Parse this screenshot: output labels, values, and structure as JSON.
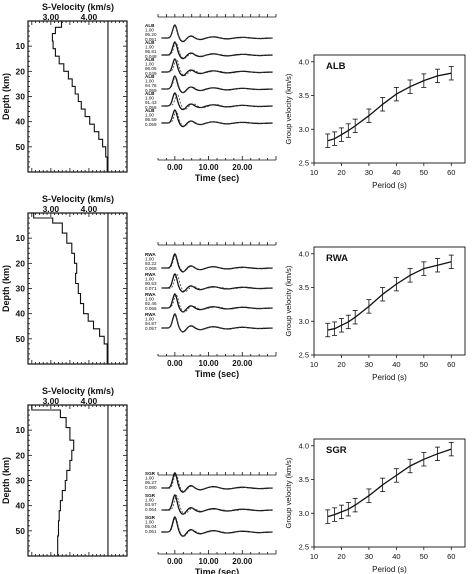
{
  "chart_data": [
    {
      "type": "line",
      "row": "ALB",
      "kind": "s-velocity-depth-profile",
      "title": "S-Velocity  (km/s)",
      "xlabel": "",
      "ylabel": "Depth (km)",
      "xlim": [
        2.4,
        5.0
      ],
      "ylim": [
        0,
        60
      ],
      "x_ticklabels": [
        "3.00",
        "4.00"
      ],
      "y_ticklabels": [
        "10",
        "20",
        "30",
        "40",
        "50"
      ],
      "reference_velocity": 4.5,
      "profile": [
        {
          "depth": 0,
          "velocity": 3.28
        },
        {
          "depth": 2.5,
          "velocity": 3.28
        },
        {
          "depth": 2.5,
          "velocity": 3.12
        },
        {
          "depth": 5,
          "velocity": 3.12
        },
        {
          "depth": 5,
          "velocity": 3.04
        },
        {
          "depth": 8,
          "velocity": 3.04
        },
        {
          "depth": 8,
          "velocity": 3.06
        },
        {
          "depth": 11,
          "velocity": 3.06
        },
        {
          "depth": 11,
          "velocity": 3.12
        },
        {
          "depth": 14,
          "velocity": 3.12
        },
        {
          "depth": 14,
          "velocity": 3.22
        },
        {
          "depth": 17,
          "velocity": 3.22
        },
        {
          "depth": 17,
          "velocity": 3.34
        },
        {
          "depth": 20,
          "velocity": 3.34
        },
        {
          "depth": 20,
          "velocity": 3.46
        },
        {
          "depth": 23,
          "velocity": 3.46
        },
        {
          "depth": 23,
          "velocity": 3.56
        },
        {
          "depth": 26,
          "velocity": 3.56
        },
        {
          "depth": 26,
          "velocity": 3.64
        },
        {
          "depth": 29,
          "velocity": 3.64
        },
        {
          "depth": 29,
          "velocity": 3.72
        },
        {
          "depth": 32,
          "velocity": 3.72
        },
        {
          "depth": 32,
          "velocity": 3.8
        },
        {
          "depth": 35,
          "velocity": 3.8
        },
        {
          "depth": 35,
          "velocity": 3.9
        },
        {
          "depth": 38,
          "velocity": 3.9
        },
        {
          "depth": 38,
          "velocity": 4.02
        },
        {
          "depth": 41,
          "velocity": 4.02
        },
        {
          "depth": 41,
          "velocity": 4.14
        },
        {
          "depth": 44,
          "velocity": 4.14
        },
        {
          "depth": 44,
          "velocity": 4.26
        },
        {
          "depth": 47,
          "velocity": 4.26
        },
        {
          "depth": 47,
          "velocity": 4.36
        },
        {
          "depth": 50,
          "velocity": 4.36
        },
        {
          "depth": 50,
          "velocity": 4.44
        },
        {
          "depth": 54,
          "velocity": 4.44
        },
        {
          "depth": 54,
          "velocity": 4.48
        },
        {
          "depth": 60,
          "velocity": 4.48
        }
      ]
    },
    {
      "type": "line",
      "row": "ALB",
      "kind": "receiver-function-waveforms",
      "xlabel": "Time (sec)",
      "x_ticklabels": [
        "0.00",
        "10.00",
        "20.00"
      ],
      "xlim": [
        -5,
        30
      ],
      "traces": [
        {
          "label": [
            "ALB",
            "1.00",
            "95.20",
            "0.051"
          ],
          "shift": 0.0
        },
        {
          "label": [
            "ALB",
            "1.00",
            "95.81",
            "0.048"
          ],
          "shift": 0.3
        },
        {
          "label": [
            "ALB",
            "1.00",
            "96.05",
            "0.049"
          ],
          "shift": 0.5
        },
        {
          "label": [
            "ALB",
            "1.00",
            "94.76",
            "0.059"
          ],
          "shift": 0.2
        },
        {
          "label": [
            "ALB",
            "1.00",
            "91.43",
            "0.058"
          ],
          "shift": 0.7
        },
        {
          "label": [
            "ALB",
            "1.00",
            "95.59",
            "0.059"
          ],
          "shift": 0.4
        }
      ]
    },
    {
      "type": "line",
      "row": "ALB",
      "kind": "group-velocity-dispersion",
      "label": "ALB",
      "xlabel": "Period (s)",
      "ylabel": "Group velocity (km/s)",
      "xlim": [
        10,
        65
      ],
      "ylim": [
        2.5,
        4.1
      ],
      "x_ticks": [
        10,
        20,
        30,
        40,
        50,
        60
      ],
      "y_ticks": [
        2.5,
        3.0,
        3.5,
        4.0
      ],
      "y_ticklabels": [
        "2.5",
        "3.0",
        "3.5",
        "4.0"
      ],
      "x": [
        15,
        17.5,
        20,
        22.5,
        25,
        30,
        35,
        40,
        45,
        50,
        55,
        60
      ],
      "y": [
        2.83,
        2.86,
        2.92,
        2.98,
        3.05,
        3.2,
        3.37,
        3.52,
        3.63,
        3.72,
        3.79,
        3.83
      ],
      "error": [
        0.1,
        0.1,
        0.1,
        0.1,
        0.1,
        0.1,
        0.1,
        0.1,
        0.1,
        0.1,
        0.1,
        0.1
      ]
    },
    {
      "type": "line",
      "row": "RWA",
      "kind": "s-velocity-depth-profile",
      "title": "S-Velocity  (km/s)",
      "xlabel": "",
      "ylabel": "Depth (km)",
      "xlim": [
        2.4,
        5.0
      ],
      "ylim": [
        0,
        60
      ],
      "x_ticklabels": [
        "3.00",
        "4.00"
      ],
      "y_ticklabels": [
        "10",
        "20",
        "30",
        "40",
        "50"
      ],
      "reference_velocity": 4.5,
      "profile": [
        {
          "depth": 0,
          "velocity": 2.55
        },
        {
          "depth": 2,
          "velocity": 2.55
        },
        {
          "depth": 2,
          "velocity": 3.05
        },
        {
          "depth": 4,
          "velocity": 3.05
        },
        {
          "depth": 4,
          "velocity": 3.3
        },
        {
          "depth": 8,
          "velocity": 3.3
        },
        {
          "depth": 8,
          "velocity": 3.42
        },
        {
          "depth": 12,
          "velocity": 3.42
        },
        {
          "depth": 12,
          "velocity": 3.55
        },
        {
          "depth": 16,
          "velocity": 3.55
        },
        {
          "depth": 16,
          "velocity": 3.62
        },
        {
          "depth": 20,
          "velocity": 3.62
        },
        {
          "depth": 20,
          "velocity": 3.68
        },
        {
          "depth": 24,
          "velocity": 3.68
        },
        {
          "depth": 24,
          "velocity": 3.65
        },
        {
          "depth": 28,
          "velocity": 3.65
        },
        {
          "depth": 28,
          "velocity": 3.72
        },
        {
          "depth": 32,
          "velocity": 3.72
        },
        {
          "depth": 32,
          "velocity": 3.78
        },
        {
          "depth": 36,
          "velocity": 3.78
        },
        {
          "depth": 36,
          "velocity": 3.86
        },
        {
          "depth": 40,
          "velocity": 3.86
        },
        {
          "depth": 40,
          "velocity": 3.98
        },
        {
          "depth": 43,
          "velocity": 3.98
        },
        {
          "depth": 43,
          "velocity": 4.12
        },
        {
          "depth": 46,
          "velocity": 4.12
        },
        {
          "depth": 46,
          "velocity": 4.28
        },
        {
          "depth": 49,
          "velocity": 4.28
        },
        {
          "depth": 49,
          "velocity": 4.4
        },
        {
          "depth": 52,
          "velocity": 4.4
        },
        {
          "depth": 52,
          "velocity": 4.48
        },
        {
          "depth": 60,
          "velocity": 4.48
        }
      ]
    },
    {
      "type": "line",
      "row": "RWA",
      "kind": "receiver-function-waveforms",
      "xlabel": "Time (sec)",
      "x_ticklabels": [
        "0.00",
        "10.00",
        "20.00"
      ],
      "xlim": [
        -5,
        30
      ],
      "traces": [
        {
          "label": [
            "RWA",
            "1.00",
            "93.22",
            "0.068"
          ],
          "shift": 0.2
        },
        {
          "label": [
            "RWA",
            "1.00",
            "90.53",
            "0.071"
          ],
          "shift": 0.6
        },
        {
          "label": [
            "RWA",
            "1.00",
            "92.46",
            "0.066"
          ],
          "shift": 0.4
        },
        {
          "label": [
            "RWA",
            "1.00",
            "94.87",
            "0.057"
          ],
          "shift": 0.1
        }
      ]
    },
    {
      "type": "line",
      "row": "RWA",
      "kind": "group-velocity-dispersion",
      "label": "RWA",
      "xlabel": "Period (s)",
      "ylabel": "Group velocity (km/s)",
      "xlim": [
        10,
        65
      ],
      "ylim": [
        2.5,
        4.1
      ],
      "x_ticks": [
        10,
        20,
        30,
        40,
        50,
        60
      ],
      "y_ticks": [
        2.5,
        3.0,
        3.5,
        4.0
      ],
      "y_ticklabels": [
        "2.5",
        "3.0",
        "3.5",
        "4.0"
      ],
      "x": [
        15,
        17.5,
        20,
        22.5,
        25,
        30,
        35,
        40,
        45,
        50,
        55,
        60
      ],
      "y": [
        2.87,
        2.89,
        2.94,
        2.99,
        3.06,
        3.22,
        3.4,
        3.55,
        3.68,
        3.78,
        3.83,
        3.88
      ],
      "error": [
        0.1,
        0.1,
        0.1,
        0.1,
        0.1,
        0.1,
        0.1,
        0.1,
        0.1,
        0.1,
        0.1,
        0.1
      ]
    },
    {
      "type": "line",
      "row": "SGR",
      "kind": "s-velocity-depth-profile",
      "title": "S-Velocity  (km/s)",
      "xlabel": "",
      "ylabel": "Depth (km)",
      "xlim": [
        2.4,
        5.0
      ],
      "ylim": [
        0,
        60
      ],
      "x_ticklabels": [
        "3.00",
        "4.00"
      ],
      "y_ticklabels": [
        "10",
        "20",
        "30",
        "40",
        "50"
      ],
      "reference_velocity": 4.5,
      "profile": [
        {
          "depth": 0,
          "velocity": 2.5
        },
        {
          "depth": 2,
          "velocity": 2.5
        },
        {
          "depth": 2,
          "velocity": 3.25
        },
        {
          "depth": 5,
          "velocity": 3.25
        },
        {
          "depth": 5,
          "velocity": 3.4
        },
        {
          "depth": 9,
          "velocity": 3.4
        },
        {
          "depth": 9,
          "velocity": 3.5
        },
        {
          "depth": 14,
          "velocity": 3.5
        },
        {
          "depth": 14,
          "velocity": 3.6
        },
        {
          "depth": 18,
          "velocity": 3.6
        },
        {
          "depth": 18,
          "velocity": 3.55
        },
        {
          "depth": 22,
          "velocity": 3.55
        },
        {
          "depth": 22,
          "velocity": 3.5
        },
        {
          "depth": 26,
          "velocity": 3.5
        },
        {
          "depth": 26,
          "velocity": 3.42
        },
        {
          "depth": 30,
          "velocity": 3.42
        },
        {
          "depth": 30,
          "velocity": 3.38
        },
        {
          "depth": 34,
          "velocity": 3.38
        },
        {
          "depth": 34,
          "velocity": 3.3
        },
        {
          "depth": 38,
          "velocity": 3.3
        },
        {
          "depth": 38,
          "velocity": 3.25
        },
        {
          "depth": 42,
          "velocity": 3.25
        },
        {
          "depth": 42,
          "velocity": 3.22
        },
        {
          "depth": 46,
          "velocity": 3.22
        },
        {
          "depth": 46,
          "velocity": 3.2
        },
        {
          "depth": 52,
          "velocity": 3.2
        },
        {
          "depth": 52,
          "velocity": 3.18
        },
        {
          "depth": 60,
          "velocity": 3.18
        }
      ]
    },
    {
      "type": "line",
      "row": "SGR",
      "kind": "receiver-function-waveforms",
      "xlabel": "Time (sec)",
      "x_ticklabels": [
        "0.00",
        "10.00",
        "20.00"
      ],
      "xlim": [
        -5,
        30
      ],
      "traces": [
        {
          "label": [
            "SGR",
            "1.00",
            "95.27",
            "0.080"
          ],
          "shift": 0.3
        },
        {
          "label": [
            "SGR",
            "1.00",
            "93.97",
            "0.064"
          ],
          "shift": 0.5
        },
        {
          "label": [
            "SGR",
            "1.00",
            "95.04",
            "0.061"
          ],
          "shift": 0.2
        }
      ]
    },
    {
      "type": "line",
      "row": "SGR",
      "kind": "group-velocity-dispersion",
      "label": "SGR",
      "xlabel": "Period (s)",
      "ylabel": "Group velocity (km/s)",
      "xlim": [
        10,
        65
      ],
      "ylim": [
        2.5,
        4.1
      ],
      "x_ticks": [
        10,
        20,
        30,
        40,
        50,
        60
      ],
      "y_ticks": [
        2.5,
        3.0,
        3.5,
        4.0
      ],
      "y_ticklabels": [
        "2.5",
        "3.0",
        "3.5",
        "4.0"
      ],
      "x": [
        15,
        17.5,
        20,
        22.5,
        25,
        30,
        35,
        40,
        45,
        50,
        55,
        60
      ],
      "y": [
        2.95,
        2.98,
        3.02,
        3.06,
        3.12,
        3.26,
        3.42,
        3.56,
        3.7,
        3.8,
        3.88,
        3.95
      ],
      "error": [
        0.1,
        0.1,
        0.1,
        0.1,
        0.1,
        0.1,
        0.1,
        0.1,
        0.1,
        0.1,
        0.1,
        0.1
      ]
    }
  ]
}
